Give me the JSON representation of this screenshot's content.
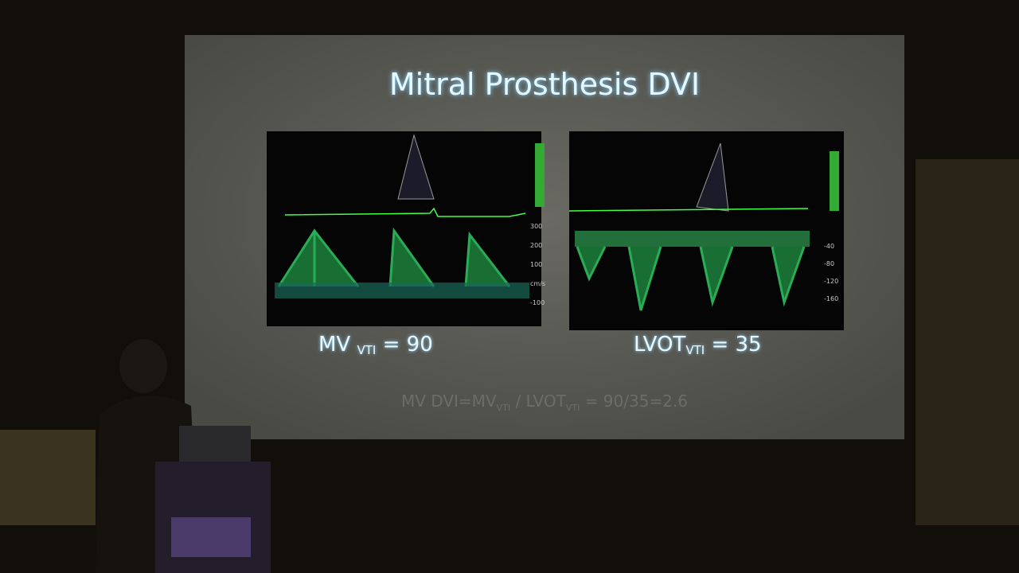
{
  "slide": {
    "title": "Mitral Prosthesis DVI",
    "left_label": {
      "main": "MV",
      "sub": "VTI",
      "rest": "= 90"
    },
    "right_label": {
      "main": "LVOT",
      "sub": "VTI",
      "rest": "= 35"
    },
    "formula": {
      "part1": "MV DVI=MV",
      "sub1": "VTI",
      "part2": "/ LVOT",
      "sub2": "VTI",
      "part3": "= 90/35=2.6"
    },
    "left_scale": [
      "300",
      "200",
      "100",
      "cm/s",
      "-100"
    ],
    "right_scale": [
      "-40",
      "-80",
      "-120",
      "-160"
    ]
  }
}
